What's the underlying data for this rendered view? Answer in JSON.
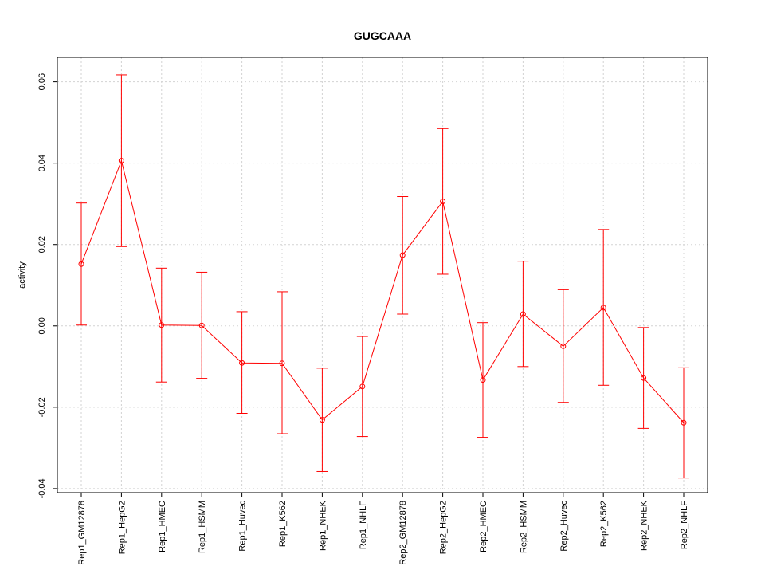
{
  "chart_data": {
    "type": "line",
    "title": "GUGCAAA",
    "xlabel": "",
    "ylabel": "activity",
    "ylim": [
      -0.041,
      0.066
    ],
    "yticks": [
      -0.04,
      -0.02,
      0.0,
      0.02,
      0.04,
      0.06
    ],
    "ytick_labels": [
      "-0.04",
      "-0.02",
      "0.00",
      "0.02",
      "0.04",
      "0.06"
    ],
    "grid": true,
    "categories": [
      "Rep1_GM12878",
      "Rep1_HepG2",
      "Rep1_HMEC",
      "Rep1_HSMM",
      "Rep1_Huvec",
      "Rep1_K562",
      "Rep1_NHEK",
      "Rep1_NHLF",
      "Rep2_GM12878",
      "Rep2_HepG2",
      "Rep2_HMEC",
      "Rep2_HSMM",
      "Rep2_Huvec",
      "Rep2_K562",
      "Rep2_NHEK",
      "Rep2_NHLF"
    ],
    "series": [
      {
        "color": "#ff0000",
        "values": [
          0.0152,
          0.0406,
          0.0002,
          0.0001,
          -0.0091,
          -0.0092,
          -0.0231,
          -0.0149,
          0.0174,
          0.0306,
          -0.0133,
          0.0029,
          -0.005,
          0.0045,
          -0.0128,
          -0.0238
        ],
        "err_low": [
          0.0002,
          0.0195,
          -0.0138,
          -0.0129,
          -0.0215,
          -0.0265,
          -0.0358,
          -0.0272,
          0.0029,
          0.0127,
          -0.0274,
          -0.01,
          -0.0188,
          -0.0146,
          -0.0252,
          -0.0374
        ],
        "err_high": [
          0.0302,
          0.0617,
          0.0142,
          0.0132,
          0.0035,
          0.0084,
          -0.0104,
          -0.0026,
          0.0318,
          0.0485,
          0.0008,
          0.0159,
          0.0089,
          0.0237,
          -0.0004,
          -0.0103
        ]
      }
    ]
  }
}
